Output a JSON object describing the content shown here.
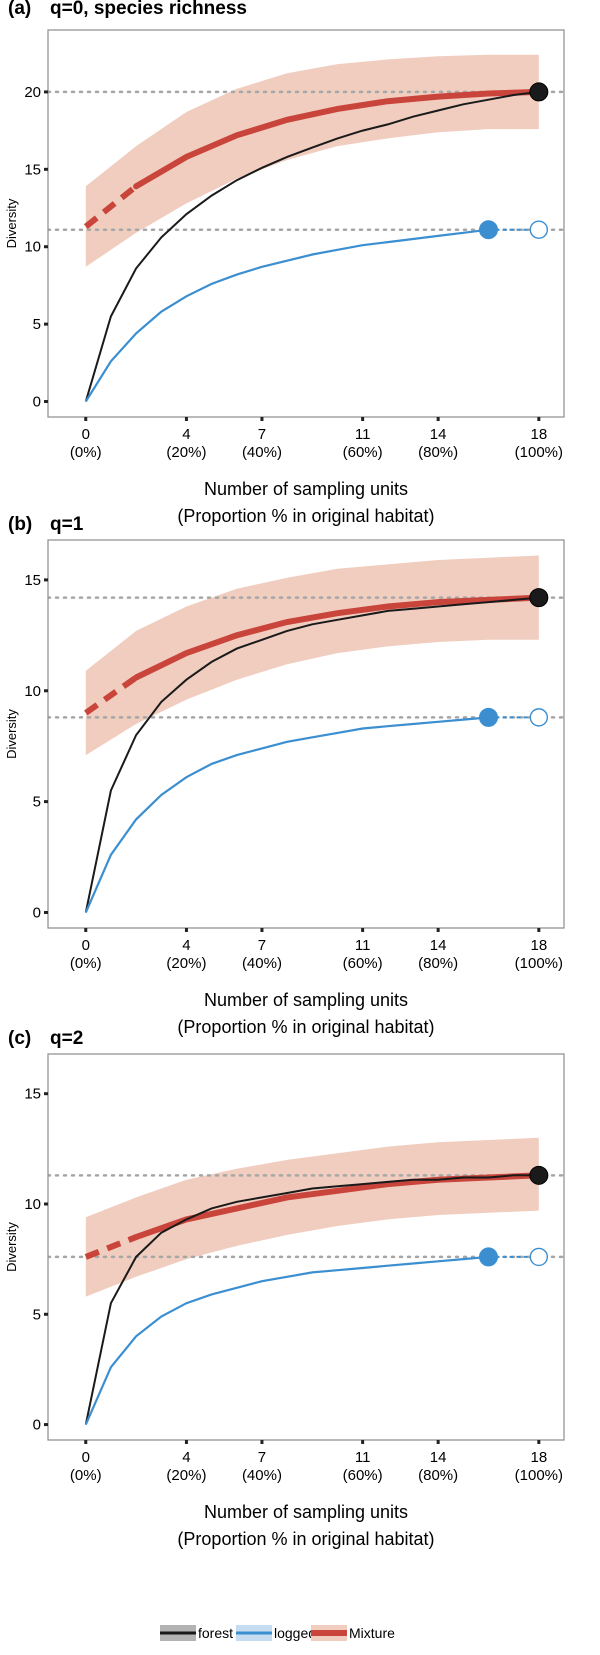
{
  "chart_data": [
    {
      "type": "line",
      "panel_label": "(a)",
      "title": "q=0, species richness",
      "ylabel": "Diversity",
      "xlabel": [
        "Number of sampling units",
        "(Proportion % in original habitat)"
      ],
      "ylim": [
        -1,
        24
      ],
      "yticks": [
        0,
        5,
        10,
        15,
        20
      ],
      "xlim": [
        -1.5,
        19
      ],
      "xticks": [
        {
          "value": 0,
          "label": "0",
          "sub": "(0%)"
        },
        {
          "value": 4,
          "label": "4",
          "sub": "(20%)"
        },
        {
          "value": 7,
          "label": "7",
          "sub": "(40%)"
        },
        {
          "value": 11,
          "label": "11",
          "sub": "(60%)"
        },
        {
          "value": 14,
          "label": "14",
          "sub": "(80%)"
        },
        {
          "value": 18,
          "label": "18",
          "sub": "(100%)"
        }
      ],
      "reference_lines": [
        20,
        11.1
      ],
      "series": [
        {
          "name": "forest",
          "color": "#1a1a1a",
          "x": [
            0,
            1,
            2,
            3,
            4,
            5,
            6,
            7,
            8,
            9,
            10,
            11,
            12,
            13,
            14,
            15,
            16,
            17,
            18
          ],
          "y": [
            0,
            5.5,
            8.6,
            10.6,
            12.1,
            13.3,
            14.3,
            15.1,
            15.8,
            16.4,
            17,
            17.5,
            17.9,
            18.4,
            18.8,
            19.2,
            19.5,
            19.8,
            20
          ]
        },
        {
          "name": "logged",
          "color": "#3b8fd1",
          "x": [
            0,
            1,
            2,
            3,
            4,
            5,
            6,
            7,
            8,
            9,
            10,
            11,
            12,
            13,
            14,
            15,
            16
          ],
          "y": [
            0,
            2.6,
            4.4,
            5.8,
            6.8,
            7.6,
            8.2,
            8.7,
            9.1,
            9.5,
            9.8,
            10.1,
            10.3,
            10.5,
            10.7,
            10.9,
            11.1
          ],
          "extrapolation": {
            "x": [
              16,
              18
            ],
            "y": [
              11.1,
              11.1
            ]
          }
        },
        {
          "name": "Mixture",
          "color": "#c9443a",
          "x": [
            0,
            2,
            4,
            6,
            8,
            10,
            12,
            14,
            16,
            18
          ],
          "y": [
            11.3,
            13.9,
            15.8,
            17.2,
            18.2,
            18.9,
            19.4,
            19.7,
            19.9,
            20
          ],
          "lower": [
            8.7,
            10.9,
            12.8,
            14.4,
            15.6,
            16.5,
            17,
            17.4,
            17.6,
            17.6
          ],
          "upper": [
            13.9,
            16.5,
            18.7,
            20.2,
            21.2,
            21.8,
            22.1,
            22.3,
            22.4,
            22.4
          ],
          "dashed_until": 2
        }
      ],
      "points": [
        {
          "series": "forest",
          "x": 18,
          "y": 20,
          "filled": true
        },
        {
          "series": "logged",
          "x": 16,
          "y": 11.1,
          "filled": true
        },
        {
          "series": "logged",
          "x": 18,
          "y": 11.1,
          "filled": false
        }
      ]
    },
    {
      "type": "line",
      "panel_label": "(b)",
      "title": "q=1",
      "ylabel": "Diversity",
      "xlabel": [
        "Number of sampling units",
        "(Proportion % in original habitat)"
      ],
      "ylim": [
        -0.7,
        16.8
      ],
      "yticks": [
        0,
        5,
        10,
        15
      ],
      "xlim": [
        -1.5,
        19
      ],
      "xticks": [
        {
          "value": 0,
          "label": "0",
          "sub": "(0%)"
        },
        {
          "value": 4,
          "label": "4",
          "sub": "(20%)"
        },
        {
          "value": 7,
          "label": "7",
          "sub": "(40%)"
        },
        {
          "value": 11,
          "label": "11",
          "sub": "(60%)"
        },
        {
          "value": 14,
          "label": "14",
          "sub": "(80%)"
        },
        {
          "value": 18,
          "label": "18",
          "sub": "(100%)"
        }
      ],
      "reference_lines": [
        14.2,
        8.8
      ],
      "series": [
        {
          "name": "forest",
          "color": "#1a1a1a",
          "x": [
            0,
            1,
            2,
            3,
            4,
            5,
            6,
            7,
            8,
            9,
            10,
            11,
            12,
            13,
            14,
            15,
            16,
            17,
            18
          ],
          "y": [
            0,
            5.5,
            8,
            9.5,
            10.5,
            11.3,
            11.9,
            12.3,
            12.7,
            13,
            13.2,
            13.4,
            13.6,
            13.7,
            13.8,
            13.9,
            14,
            14.1,
            14.2
          ]
        },
        {
          "name": "logged",
          "color": "#3b8fd1",
          "x": [
            0,
            1,
            2,
            3,
            4,
            5,
            6,
            7,
            8,
            9,
            10,
            11,
            12,
            13,
            14,
            15,
            16
          ],
          "y": [
            0,
            2.6,
            4.2,
            5.3,
            6.1,
            6.7,
            7.1,
            7.4,
            7.7,
            7.9,
            8.1,
            8.3,
            8.4,
            8.5,
            8.6,
            8.7,
            8.8
          ],
          "extrapolation": {
            "x": [
              16,
              18
            ],
            "y": [
              8.8,
              8.8
            ]
          }
        },
        {
          "name": "Mixture",
          "color": "#c9443a",
          "x": [
            0,
            2,
            4,
            6,
            8,
            10,
            12,
            14,
            16,
            18
          ],
          "y": [
            9,
            10.6,
            11.7,
            12.5,
            13.1,
            13.5,
            13.8,
            14,
            14.1,
            14.2
          ],
          "lower": [
            7.1,
            8.5,
            9.6,
            10.5,
            11.2,
            11.7,
            12,
            12.2,
            12.3,
            12.3
          ],
          "upper": [
            10.9,
            12.7,
            13.8,
            14.6,
            15.1,
            15.5,
            15.7,
            15.9,
            16,
            16.1
          ],
          "dashed_until": 2
        }
      ],
      "points": [
        {
          "series": "forest",
          "x": 18,
          "y": 14.2,
          "filled": true
        },
        {
          "series": "logged",
          "x": 16,
          "y": 8.8,
          "filled": true
        },
        {
          "series": "logged",
          "x": 18,
          "y": 8.8,
          "filled": false
        }
      ]
    },
    {
      "type": "line",
      "panel_label": "(c)",
      "title": "q=2",
      "ylabel": "Diversity",
      "xlabel": [
        "Number of sampling units",
        "(Proportion % in original habitat)"
      ],
      "ylim": [
        -0.7,
        16.8
      ],
      "yticks": [
        0,
        5,
        10,
        15
      ],
      "xlim": [
        -1.5,
        19
      ],
      "xticks": [
        {
          "value": 0,
          "label": "0",
          "sub": "(0%)"
        },
        {
          "value": 4,
          "label": "4",
          "sub": "(20%)"
        },
        {
          "value": 7,
          "label": "7",
          "sub": "(40%)"
        },
        {
          "value": 11,
          "label": "11",
          "sub": "(60%)"
        },
        {
          "value": 14,
          "label": "14",
          "sub": "(80%)"
        },
        {
          "value": 18,
          "label": "18",
          "sub": "(100%)"
        }
      ],
      "reference_lines": [
        11.3,
        7.6
      ],
      "series": [
        {
          "name": "forest",
          "color": "#1a1a1a",
          "x": [
            0,
            1,
            2,
            3,
            4,
            5,
            6,
            7,
            8,
            9,
            10,
            11,
            12,
            13,
            14,
            15,
            16,
            17,
            18
          ],
          "y": [
            0,
            5.5,
            7.6,
            8.7,
            9.3,
            9.8,
            10.1,
            10.3,
            10.5,
            10.7,
            10.8,
            10.9,
            11,
            11.1,
            11.1,
            11.2,
            11.2,
            11.3,
            11.3
          ]
        },
        {
          "name": "logged",
          "color": "#3b8fd1",
          "x": [
            0,
            1,
            2,
            3,
            4,
            5,
            6,
            7,
            8,
            9,
            10,
            11,
            12,
            13,
            14,
            15,
            16
          ],
          "y": [
            0,
            2.6,
            4,
            4.9,
            5.5,
            5.9,
            6.2,
            6.5,
            6.7,
            6.9,
            7,
            7.1,
            7.2,
            7.3,
            7.4,
            7.5,
            7.6
          ],
          "extrapolation": {
            "x": [
              16,
              18
            ],
            "y": [
              7.6,
              7.6
            ]
          }
        },
        {
          "name": "Mixture",
          "color": "#c9443a",
          "x": [
            0,
            2,
            4,
            6,
            8,
            10,
            12,
            14,
            16,
            18
          ],
          "y": [
            7.6,
            8.5,
            9.3,
            9.8,
            10.3,
            10.6,
            10.9,
            11.1,
            11.2,
            11.3
          ],
          "lower": [
            5.8,
            6.7,
            7.5,
            8.1,
            8.6,
            9,
            9.3,
            9.5,
            9.6,
            9.7
          ],
          "upper": [
            9.4,
            10.3,
            11.1,
            11.6,
            12,
            12.3,
            12.6,
            12.8,
            12.9,
            13
          ],
          "dashed_until": 2
        }
      ],
      "points": [
        {
          "series": "forest",
          "x": 18,
          "y": 11.3,
          "filled": true
        },
        {
          "series": "logged",
          "x": 16,
          "y": 7.6,
          "filled": true
        },
        {
          "series": "logged",
          "x": 18,
          "y": 7.6,
          "filled": false
        }
      ]
    }
  ],
  "legend": {
    "placement": "bottom",
    "items": [
      {
        "label": "forest",
        "color": "#1a1a1a",
        "band": "#b3b3b3"
      },
      {
        "label": "logged",
        "color": "#3b8fd1",
        "band": "#c6dcf0"
      },
      {
        "label": "Mixture",
        "color": "#c9443a",
        "band": "#f0cdbf"
      }
    ]
  },
  "colors": {
    "reference_line": "#a6a6a6",
    "mixture_band": "#f0cdbf",
    "frame": "#8c8c8c"
  }
}
